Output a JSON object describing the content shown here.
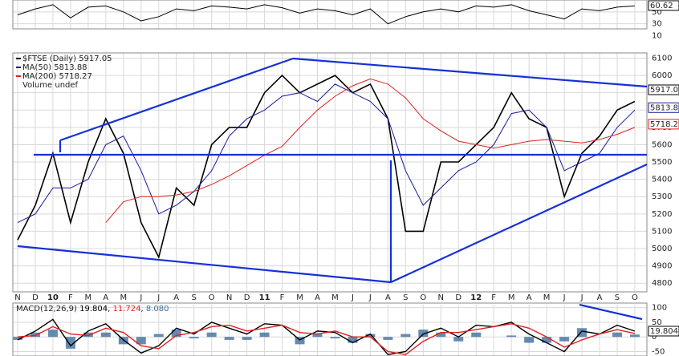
{
  "chart_data": [
    {
      "type": "rsi",
      "series": [
        {
          "color": "#000000",
          "values": [
            45,
            55,
            62,
            40,
            58,
            60,
            50,
            35,
            42,
            55,
            52,
            60,
            58,
            55,
            62,
            57,
            48,
            55,
            52,
            45,
            55,
            30,
            42,
            50,
            55,
            50,
            60,
            58,
            62,
            52,
            45,
            38,
            55,
            52,
            58,
            60
          ]
        }
      ],
      "last": 60.62,
      "ylim": [
        8,
        70
      ],
      "yticks": [
        10,
        30,
        50
      ]
    },
    {
      "type": "price",
      "categories": [
        "N",
        "D",
        "10",
        "F",
        "M",
        "A",
        "M",
        "J",
        "J",
        "A",
        "S",
        "O",
        "N",
        "D",
        "11",
        "F",
        "M",
        "A",
        "M",
        "J",
        "J",
        "A",
        "S",
        "O",
        "N",
        "D",
        "12",
        "F",
        "M",
        "A",
        "M",
        "J",
        "J",
        "A",
        "S",
        "O"
      ],
      "series": [
        {
          "name": "$FTSE (Daily)",
          "color": "#000000",
          "last": 5917.05,
          "values": [
            5050,
            5250,
            5550,
            5150,
            5500,
            5750,
            5550,
            5150,
            4950,
            5350,
            5250,
            5600,
            5700,
            5700,
            5900,
            6000,
            5900,
            5950,
            6000,
            5900,
            5950,
            5750,
            5100,
            5100,
            5500,
            5500,
            5600,
            5700,
            5900,
            5750,
            5700,
            5300,
            5550,
            5650,
            5800,
            5850
          ]
        },
        {
          "name": "MA(50)",
          "color": "#1a1a9a",
          "last": 5813.88,
          "values": [
            5150,
            5200,
            5350,
            5350,
            5400,
            5600,
            5650,
            5450,
            5200,
            5250,
            5330,
            5450,
            5650,
            5750,
            5800,
            5880,
            5900,
            5850,
            5950,
            5900,
            5850,
            5750,
            5450,
            5250,
            5350,
            5450,
            5500,
            5600,
            5780,
            5800,
            5700,
            5450,
            5500,
            5550,
            5700,
            5800
          ]
        },
        {
          "name": "MA(200)",
          "color": "#e02020",
          "last": 5718.27,
          "values": [
            null,
            null,
            null,
            null,
            null,
            5150,
            5270,
            5300,
            5300,
            5310,
            5330,
            5370,
            5420,
            5480,
            5540,
            5590,
            5700,
            5800,
            5880,
            5940,
            5980,
            5950,
            5870,
            5750,
            5680,
            5620,
            5600,
            5580,
            5600,
            5620,
            5630,
            5620,
            5610,
            5630,
            5660,
            5700
          ]
        }
      ],
      "note_text": "Volume undef",
      "ylim": [
        4750,
        6130
      ],
      "yticks": [
        4800,
        4900,
        5000,
        5100,
        5200,
        5300,
        5400,
        5500,
        5600,
        5700,
        5800,
        5900,
        6000,
        6100
      ]
    },
    {
      "type": "macd",
      "title": "MACD(12,26,9)",
      "series": [
        {
          "color": "#000000",
          "last": 19.804,
          "values": [
            -10,
            20,
            60,
            -30,
            20,
            45,
            -10,
            -55,
            -30,
            30,
            10,
            50,
            30,
            10,
            45,
            40,
            -10,
            20,
            15,
            -20,
            10,
            -60,
            -50,
            10,
            30,
            0,
            40,
            35,
            50,
            10,
            -20,
            -50,
            20,
            10,
            40,
            19.8
          ]
        },
        {
          "color": "#e02020",
          "last": 11.724,
          "values": [
            0,
            5,
            35,
            10,
            5,
            30,
            15,
            -30,
            -40,
            5,
            15,
            35,
            40,
            20,
            30,
            40,
            15,
            10,
            20,
            0,
            0,
            -50,
            -60,
            -15,
            15,
            15,
            25,
            35,
            45,
            30,
            0,
            -35,
            -10,
            10,
            25,
            11.7
          ]
        },
        {
          "color": "#3d6e9e",
          "last": {
            "value": 8.08,
            "label": "8.080"
          },
          "values": [
            -10,
            15,
            25,
            -40,
            15,
            15,
            -25,
            -25,
            10,
            25,
            -5,
            15,
            -10,
            -10,
            15,
            0,
            -25,
            10,
            -5,
            -20,
            10,
            -10,
            10,
            25,
            15,
            -15,
            15,
            0,
            5,
            -20,
            -20,
            -15,
            30,
            0,
            15,
            8.08
          ]
        }
      ],
      "ylim": [
        -65,
        110
      ],
      "yticks": [
        -50,
        0,
        50,
        100
      ]
    }
  ]
}
